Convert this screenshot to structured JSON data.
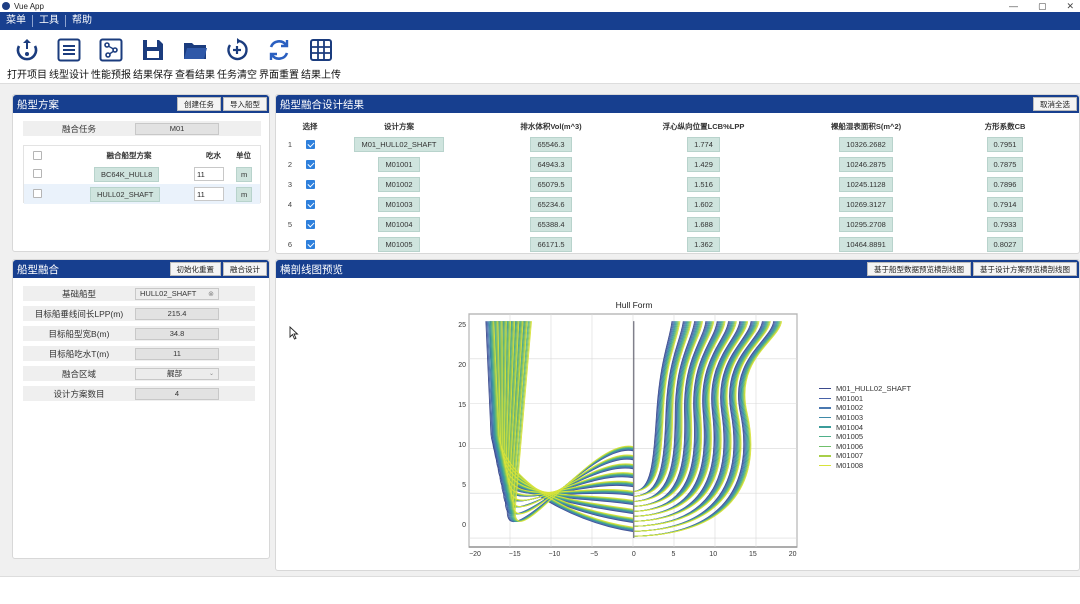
{
  "window": {
    "title": "Vue App",
    "minimize": "—",
    "maximize": "▢",
    "close": "✕"
  },
  "menu": [
    "菜单",
    "工具",
    "帮助"
  ],
  "toolbar": [
    {
      "label": "打开项目",
      "icon": "open-project-icon"
    },
    {
      "label": "线型设计",
      "icon": "lines-design-icon"
    },
    {
      "label": "性能预报",
      "icon": "performance-forecast-icon"
    },
    {
      "label": "结果保存",
      "icon": "save-icon"
    },
    {
      "label": "查看结果",
      "icon": "folder-icon"
    },
    {
      "label": "任务清空",
      "icon": "clear-task-icon"
    },
    {
      "label": "界面重置",
      "icon": "refresh-icon"
    },
    {
      "label": "结果上传",
      "icon": "upload-icon"
    }
  ],
  "hull_plan": {
    "title": "船型方案",
    "btn_create": "创建任务",
    "btn_import": "导入船型",
    "task_label": "融合任务",
    "task_value": "M01",
    "col_name": "融合船型方案",
    "col_draft": "吃水",
    "col_unit": "单位",
    "rows": [
      {
        "name": "BC64K_HULL8",
        "draft": "11",
        "unit": "m"
      },
      {
        "name": "HULL02_SHAFT",
        "draft": "11",
        "unit": "m"
      }
    ]
  },
  "hull_fusion": {
    "title": "船型融合",
    "btn_init": "初始化重置",
    "btn_design": "融合设计",
    "fields": [
      {
        "label": "基础船型",
        "value": "HULL02_SHAFT",
        "select": true,
        "clear": true
      },
      {
        "label": "目标船垂线间长LPP(m)",
        "value": "215.4"
      },
      {
        "label": "目标船型宽B(m)",
        "value": "34.8"
      },
      {
        "label": "目标船吃水T(m)",
        "value": "11"
      },
      {
        "label": "融合区域",
        "value": "艉部",
        "select": true
      },
      {
        "label": "设计方案数目",
        "value": "4"
      }
    ]
  },
  "results": {
    "title": "船型融合设计结果",
    "btn_cancel": "取消全选",
    "headers": [
      "选择",
      "设计方案",
      "排水体积Vol(m^3)",
      "浮心纵向位置LCB%LPP",
      "裸船湿表面积S(m^2)",
      "方形系数CB"
    ],
    "rows": [
      {
        "no": "1",
        "name": "M01_HULL02_SHAFT",
        "vol": "65546.3",
        "lcb": "1.774",
        "s": "10326.2682",
        "cb": "0.7951"
      },
      {
        "no": "2",
        "name": "M01001",
        "vol": "64943.3",
        "lcb": "1.429",
        "s": "10246.2875",
        "cb": "0.7875"
      },
      {
        "no": "3",
        "name": "M01002",
        "vol": "65079.5",
        "lcb": "1.516",
        "s": "10245.1128",
        "cb": "0.7896"
      },
      {
        "no": "4",
        "name": "M01003",
        "vol": "65234.6",
        "lcb": "1.602",
        "s": "10269.3127",
        "cb": "0.7914"
      },
      {
        "no": "5",
        "name": "M01004",
        "vol": "65388.4",
        "lcb": "1.688",
        "s": "10295.2708",
        "cb": "0.7933"
      },
      {
        "no": "6",
        "name": "M01005",
        "vol": "66171.5",
        "lcb": "1.362",
        "s": "10464.8891",
        "cb": "0.8027"
      }
    ]
  },
  "preview": {
    "title": "横剖线图预览",
    "btn_data_plot": "基于船型数据预览横剖线图",
    "btn_design_plot": "基于设计方案预览横剖线图"
  },
  "colors": {
    "brand": "#173f8f",
    "accent": "#2d7fdc",
    "tag": "#cfe4de"
  },
  "chart_data": {
    "type": "line",
    "title": "Hull Form",
    "xlabel": "",
    "ylabel": "",
    "xlim": [
      -20,
      20
    ],
    "ylim": [
      -1,
      25
    ],
    "xticks": [
      "−20",
      "−15",
      "−10",
      "−5",
      "0",
      "5",
      "10",
      "15",
      "20"
    ],
    "yticks": [
      "0",
      "5",
      "10",
      "15",
      "20",
      "25"
    ],
    "grid": true,
    "legend_position": "right",
    "series": [
      {
        "name": "M01_HULL02_SHAFT",
        "color": "#3b4a8c"
      },
      {
        "name": "M01001",
        "color": "#4862a8"
      },
      {
        "name": "M01002",
        "color": "#4a78b0"
      },
      {
        "name": "M01003",
        "color": "#3f8aa8"
      },
      {
        "name": "M01004",
        "color": "#3b9c9a"
      },
      {
        "name": "M01005",
        "color": "#4fb08a"
      },
      {
        "name": "M01006",
        "color": "#70c06c"
      },
      {
        "name": "M01007",
        "color": "#a8cf48"
      },
      {
        "name": "M01008",
        "color": "#d8e33a"
      }
    ]
  }
}
